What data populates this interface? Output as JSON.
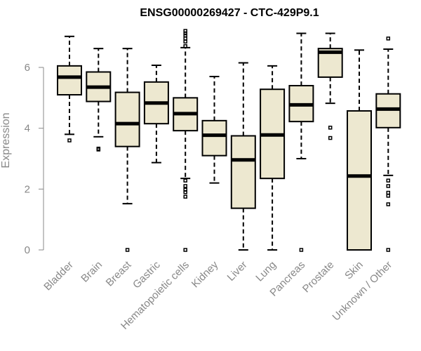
{
  "chart_data": {
    "type": "boxplot",
    "title": "ENSG00000269427 - CTC-429P9.1",
    "xlabel": "",
    "ylabel": "Expression",
    "ylim": [
      0,
      7.2
    ],
    "yticks": [
      0,
      2,
      4,
      6
    ],
    "box_color": "#ede8d0",
    "series": [
      {
        "name": "Bladder",
        "whisker_low": 3.8,
        "q1": 5.1,
        "median": 5.68,
        "q3": 6.05,
        "whisker_high": 7.02,
        "outliers": [
          3.6
        ]
      },
      {
        "name": "Brain",
        "whisker_low": 3.72,
        "q1": 4.88,
        "median": 5.35,
        "q3": 5.85,
        "whisker_high": 6.62,
        "outliers": [
          3.3,
          3.33
        ]
      },
      {
        "name": "Breast",
        "whisker_low": 1.52,
        "q1": 3.4,
        "median": 4.15,
        "q3": 5.18,
        "whisker_high": 6.62,
        "outliers": [
          0
        ]
      },
      {
        "name": "Gastric",
        "whisker_low": 2.87,
        "q1": 4.15,
        "median": 4.83,
        "q3": 5.52,
        "whisker_high": 6.07,
        "outliers": []
      },
      {
        "name": "Hematopoietic cells",
        "whisker_low": 2.35,
        "q1": 3.92,
        "median": 4.48,
        "q3": 5.0,
        "whisker_high": 6.65,
        "outliers": [
          0,
          1.75,
          1.9,
          1.98,
          2.1,
          2.28,
          6.7,
          6.85,
          6.95,
          7.05,
          7.12,
          7.2
        ]
      },
      {
        "name": "Kidney",
        "whisker_low": 2.2,
        "q1": 3.1,
        "median": 3.77,
        "q3": 4.25,
        "whisker_high": 5.7,
        "outliers": []
      },
      {
        "name": "Liver",
        "whisker_low": 0,
        "q1": 1.37,
        "median": 2.96,
        "q3": 3.75,
        "whisker_high": 6.15,
        "outliers": []
      },
      {
        "name": "Lung",
        "whisker_low": 0,
        "q1": 2.35,
        "median": 3.78,
        "q3": 5.28,
        "whisker_high": 6.05,
        "outliers": []
      },
      {
        "name": "Pancreas",
        "whisker_low": 3.0,
        "q1": 4.22,
        "median": 4.77,
        "q3": 5.4,
        "whisker_high": 7.12,
        "outliers": [
          0
        ]
      },
      {
        "name": "Prostate",
        "whisker_low": 4.82,
        "q1": 5.68,
        "median": 6.5,
        "q3": 6.62,
        "whisker_high": 7.12,
        "outliers": [
          3.68,
          4.02
        ]
      },
      {
        "name": "Skin",
        "whisker_low": 0,
        "q1": 0,
        "median": 2.43,
        "q3": 4.57,
        "whisker_high": 6.57,
        "outliers": []
      },
      {
        "name": "Unknown / Other",
        "whisker_low": 2.45,
        "q1": 4.02,
        "median": 4.63,
        "q3": 5.13,
        "whisker_high": 6.6,
        "outliers": [
          0,
          1.5,
          1.78,
          1.88,
          2.1,
          2.28,
          6.95
        ]
      }
    ]
  }
}
